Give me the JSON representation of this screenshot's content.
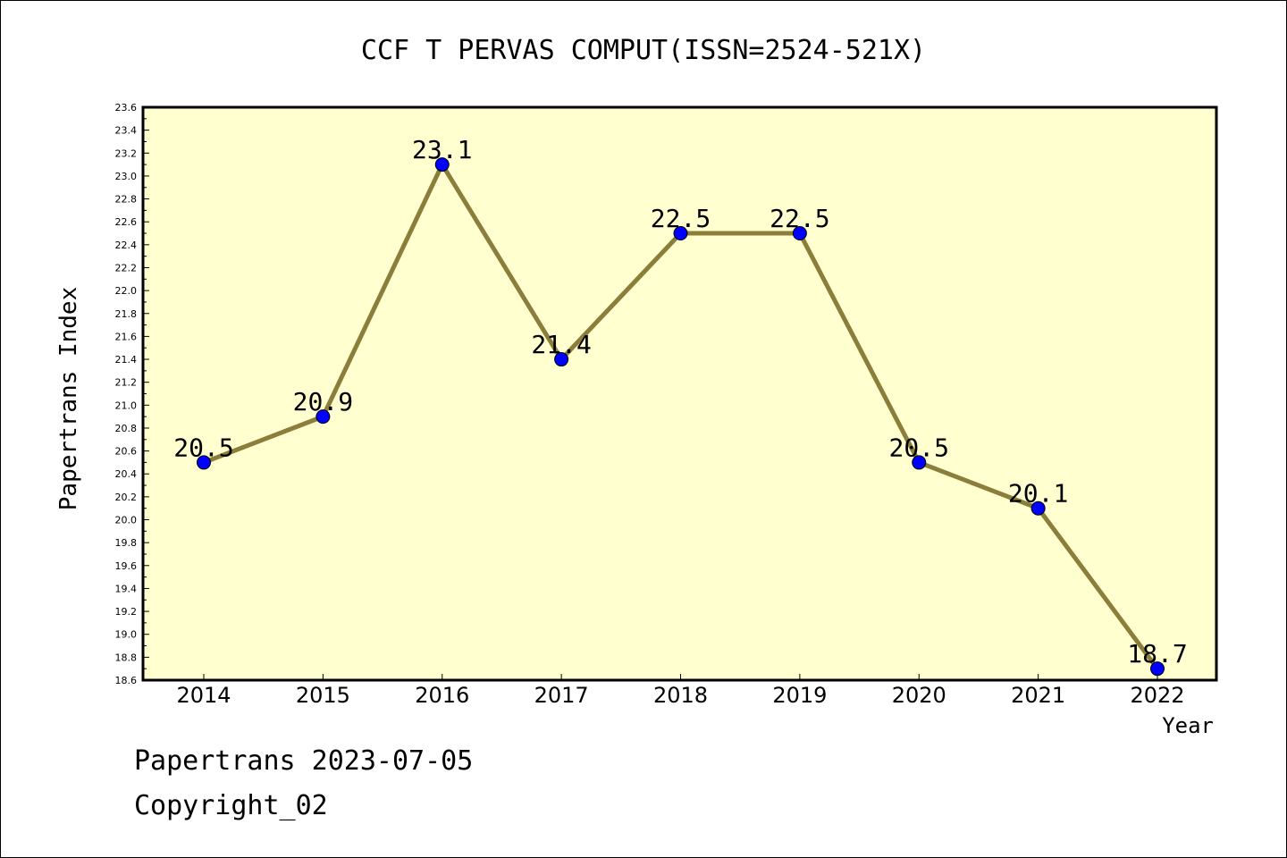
{
  "chart_data": {
    "type": "line",
    "title": "CCF T PERVAS COMPUT(ISSN=2524-521X)",
    "xlabel": "Year",
    "ylabel": "Papertrans Index",
    "categories": [
      "2014",
      "2015",
      "2016",
      "2017",
      "2018",
      "2019",
      "2020",
      "2021",
      "2022"
    ],
    "series": [
      {
        "values": [
          20.5,
          20.9,
          23.1,
          21.4,
          22.5,
          22.5,
          20.5,
          20.1,
          18.7
        ],
        "data_labels": [
          "20.5",
          "20.9",
          "23.1",
          "21.4",
          "22.5",
          "22.5",
          "20.5",
          "20.1",
          "18.7"
        ]
      }
    ],
    "ylim": [
      18.6,
      23.6
    ],
    "ytick_labels": [
      "18.6",
      "18.8",
      "19.0",
      "19.2",
      "19.4",
      "19.6",
      "19.8",
      "20.0",
      "20.2",
      "20.4",
      "20.6",
      "20.8",
      "21.0",
      "21.2",
      "21.4",
      "21.6",
      "21.8",
      "22.0",
      "22.2",
      "22.4",
      "22.6",
      "22.8",
      "23.0",
      "23.2",
      "23.4",
      "23.6"
    ],
    "grid": false,
    "colors": {
      "plot_background": "#ffffd0",
      "line": "#8b7d3a",
      "marker": "#0000ff"
    }
  },
  "footer": {
    "line1": "Papertrans 2023-07-05",
    "line2": "Copyright_02"
  }
}
